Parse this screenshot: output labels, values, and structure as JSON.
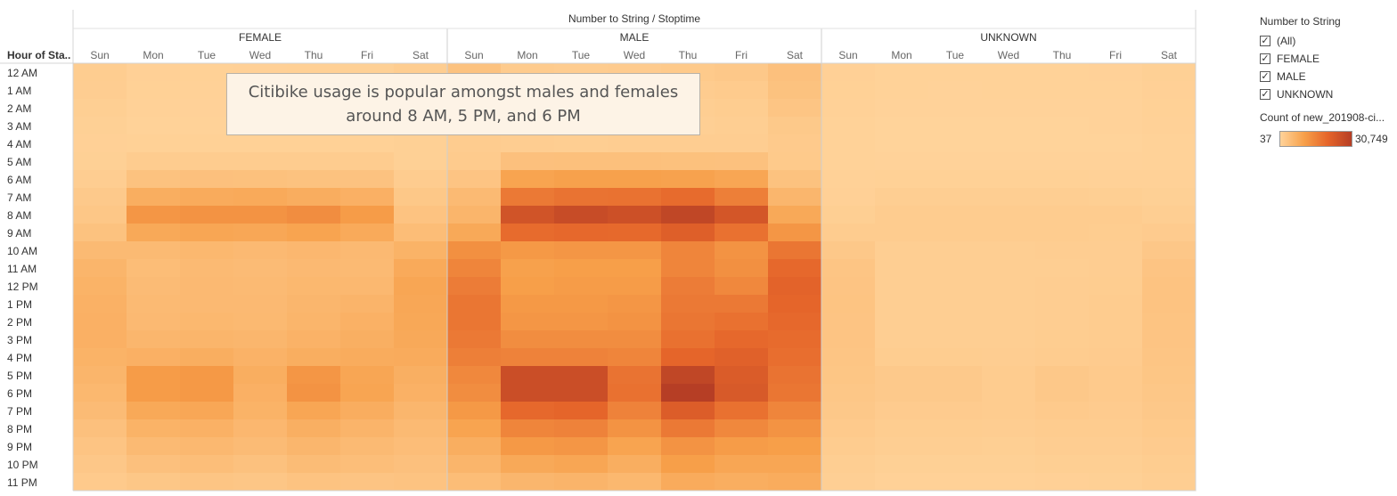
{
  "chart_data": {
    "type": "heatmap",
    "column_group_title": "Number to String / Stoptime",
    "row_header": "Hour of Sta..",
    "groups": [
      "FEMALE",
      "MALE",
      "UNKNOWN"
    ],
    "days": [
      "Sun",
      "Mon",
      "Tue",
      "Wed",
      "Thu",
      "Fri",
      "Sat"
    ],
    "hours": [
      "12 AM",
      "1 AM",
      "2 AM",
      "3 AM",
      "4 AM",
      "5 AM",
      "6 AM",
      "7 AM",
      "8 AM",
      "9 AM",
      "10 AM",
      "11 AM",
      "12 PM",
      "1 PM",
      "2 PM",
      "3 PM",
      "4 PM",
      "5 PM",
      "6 PM",
      "7 PM",
      "8 PM",
      "9 PM",
      "10 PM",
      "11 PM"
    ],
    "color_range": [
      37,
      30749
    ],
    "colors": {
      "low": "#ffd39a",
      "mid1": "#f7a04a",
      "mid2": "#e5652a",
      "high": "#b63e25"
    },
    "values": {
      "FEMALE": [
        [
          1300,
          600,
          500,
          600,
          650,
          700,
          1300
        ],
        [
          1200,
          500,
          450,
          500,
          550,
          600,
          1200
        ],
        [
          900,
          400,
          350,
          400,
          450,
          500,
          1000
        ],
        [
          700,
          300,
          300,
          300,
          300,
          400,
          800
        ],
        [
          600,
          500,
          500,
          500,
          500,
          500,
          700
        ],
        [
          700,
          1500,
          1500,
          1500,
          1400,
          1400,
          700
        ],
        [
          1200,
          3500,
          3800,
          3700,
          3500,
          3400,
          1400
        ],
        [
          2000,
          7500,
          8000,
          8200,
          7600,
          7000,
          2300
        ],
        [
          2500,
          12000,
          12500,
          12600,
          13500,
          11000,
          3200
        ],
        [
          3500,
          8500,
          9000,
          8800,
          9500,
          8200,
          4500
        ],
        [
          5000,
          5000,
          5500,
          5200,
          5600,
          5200,
          6500
        ],
        [
          6000,
          4500,
          5000,
          4800,
          5200,
          5000,
          8200
        ],
        [
          6500,
          4800,
          5200,
          5000,
          5500,
          5400,
          9000
        ],
        [
          6800,
          5000,
          5200,
          5200,
          5800,
          6200,
          8800
        ],
        [
          7000,
          5200,
          5500,
          5300,
          6000,
          6800,
          8600
        ],
        [
          7000,
          5800,
          6000,
          5800,
          6600,
          7200,
          8400
        ],
        [
          6500,
          7000,
          7400,
          6600,
          7500,
          7800,
          8000
        ],
        [
          6000,
          11000,
          11500,
          7500,
          12000,
          9000,
          7200
        ],
        [
          5500,
          11000,
          11500,
          7000,
          12500,
          9200,
          6800
        ],
        [
          4800,
          8500,
          8800,
          6500,
          9000,
          7600,
          5800
        ],
        [
          3800,
          6500,
          6800,
          5600,
          7200,
          6200,
          5000
        ],
        [
          3000,
          5000,
          5400,
          4800,
          5800,
          5000,
          4400
        ],
        [
          2400,
          3800,
          4200,
          3600,
          4600,
          4200,
          3800
        ],
        [
          1800,
          2500,
          2800,
          2600,
          3200,
          3000,
          3200
        ]
      ],
      "MALE": [
        [
          3500,
          1700,
          1500,
          1600,
          1900,
          2200,
          3800
        ],
        [
          3000,
          1300,
          1100,
          1200,
          1500,
          1700,
          3500
        ],
        [
          2400,
          1000,
          800,
          900,
          1100,
          1300,
          2800
        ],
        [
          1800,
          700,
          600,
          700,
          800,
          1000,
          2100
        ],
        [
          1500,
          1200,
          1100,
          1200,
          1200,
          1200,
          1800
        ],
        [
          1700,
          3800,
          3900,
          3900,
          3700,
          3600,
          1900
        ],
        [
          3000,
          9500,
          10000,
          10000,
          9800,
          9000,
          3500
        ],
        [
          5000,
          17000,
          18000,
          18200,
          19500,
          16000,
          5800
        ],
        [
          6000,
          25000,
          27000,
          26000,
          28500,
          24500,
          8500
        ],
        [
          8500,
          19500,
          20000,
          19800,
          22000,
          18500,
          12000
        ],
        [
          13000,
          11500,
          12000,
          12000,
          15000,
          12500,
          17500
        ],
        [
          15000,
          10000,
          10500,
          10500,
          15000,
          13000,
          20000
        ],
        [
          16500,
          10500,
          11000,
          11000,
          16500,
          14500,
          21000
        ],
        [
          17500,
          11500,
          11500,
          12000,
          17000,
          17000,
          20500
        ],
        [
          17500,
          12000,
          12000,
          12500,
          17500,
          18500,
          20000
        ],
        [
          17000,
          13500,
          13500,
          13500,
          18500,
          20000,
          19500
        ],
        [
          16000,
          15500,
          15500,
          15000,
          20500,
          21500,
          19000
        ],
        [
          14500,
          26500,
          26500,
          18000,
          28500,
          23000,
          18000
        ],
        [
          13500,
          26500,
          26500,
          18500,
          30749,
          23500,
          17500
        ],
        [
          11500,
          20000,
          20500,
          15500,
          22500,
          18500,
          15000
        ],
        [
          9500,
          15000,
          15500,
          12500,
          17000,
          14500,
          12500
        ],
        [
          7500,
          11500,
          12000,
          9500,
          12500,
          11000,
          10500
        ],
        [
          6000,
          8500,
          9000,
          7500,
          10500,
          9000,
          9000
        ],
        [
          4500,
          5800,
          6200,
          5500,
          8000,
          7500,
          7800
        ]
      ],
      "UNKNOWN": [
        [
          600,
          300,
          250,
          300,
          300,
          350,
          700
        ],
        [
          500,
          250,
          200,
          250,
          250,
          300,
          600
        ],
        [
          400,
          150,
          150,
          150,
          150,
          200,
          500
        ],
        [
          300,
          100,
          100,
          100,
          100,
          150,
          400
        ],
        [
          250,
          100,
          100,
          100,
          100,
          100,
          300
        ],
        [
          250,
          200,
          200,
          200,
          200,
          200,
          300
        ],
        [
          400,
          500,
          500,
          500,
          500,
          450,
          400
        ],
        [
          600,
          1000,
          1000,
          1000,
          1000,
          900,
          700
        ],
        [
          900,
          1500,
          1500,
          1500,
          1500,
          1400,
          1000
        ],
        [
          1400,
          1400,
          1400,
          1400,
          1400,
          1300,
          1600
        ],
        [
          2200,
          1100,
          1100,
          1100,
          1200,
          1200,
          2400
        ],
        [
          2800,
          1000,
          1000,
          1000,
          1100,
          1200,
          3000
        ],
        [
          3000,
          1000,
          1000,
          1000,
          1200,
          1300,
          3200
        ],
        [
          3100,
          1000,
          1000,
          1000,
          1200,
          1400,
          3200
        ],
        [
          3000,
          1000,
          1000,
          1000,
          1200,
          1400,
          3100
        ],
        [
          3000,
          1100,
          1100,
          1100,
          1300,
          1500,
          3000
        ],
        [
          2900,
          1300,
          1300,
          1200,
          1500,
          1600,
          2900
        ],
        [
          2700,
          2000,
          2000,
          1500,
          2200,
          1800,
          2700
        ],
        [
          2500,
          2000,
          2000,
          1500,
          2200,
          1800,
          2500
        ],
        [
          2200,
          1600,
          1600,
          1400,
          1800,
          1600,
          2200
        ],
        [
          1800,
          1300,
          1300,
          1200,
          1500,
          1400,
          1900
        ],
        [
          1500,
          1000,
          1000,
          900,
          1200,
          1200,
          1600
        ],
        [
          1100,
          700,
          700,
          700,
          900,
          900,
          1300
        ],
        [
          800,
          450,
          450,
          450,
          600,
          700,
          1000
        ]
      ]
    }
  },
  "annotation": {
    "line1": "Citibike usage is popular amongst males and females",
    "line2": "around 8 AM, 5 PM, and 6 PM"
  },
  "filter": {
    "title": "Number to String",
    "items": [
      {
        "label": "(All)",
        "checked": true
      },
      {
        "label": "FEMALE",
        "checked": true
      },
      {
        "label": "MALE",
        "checked": true
      },
      {
        "label": "UNKNOWN",
        "checked": true
      }
    ],
    "check_glyph": "✓"
  },
  "color_legend": {
    "title": "Count of new_201908-ci...",
    "min_label": "37",
    "max_label": "30,749"
  }
}
